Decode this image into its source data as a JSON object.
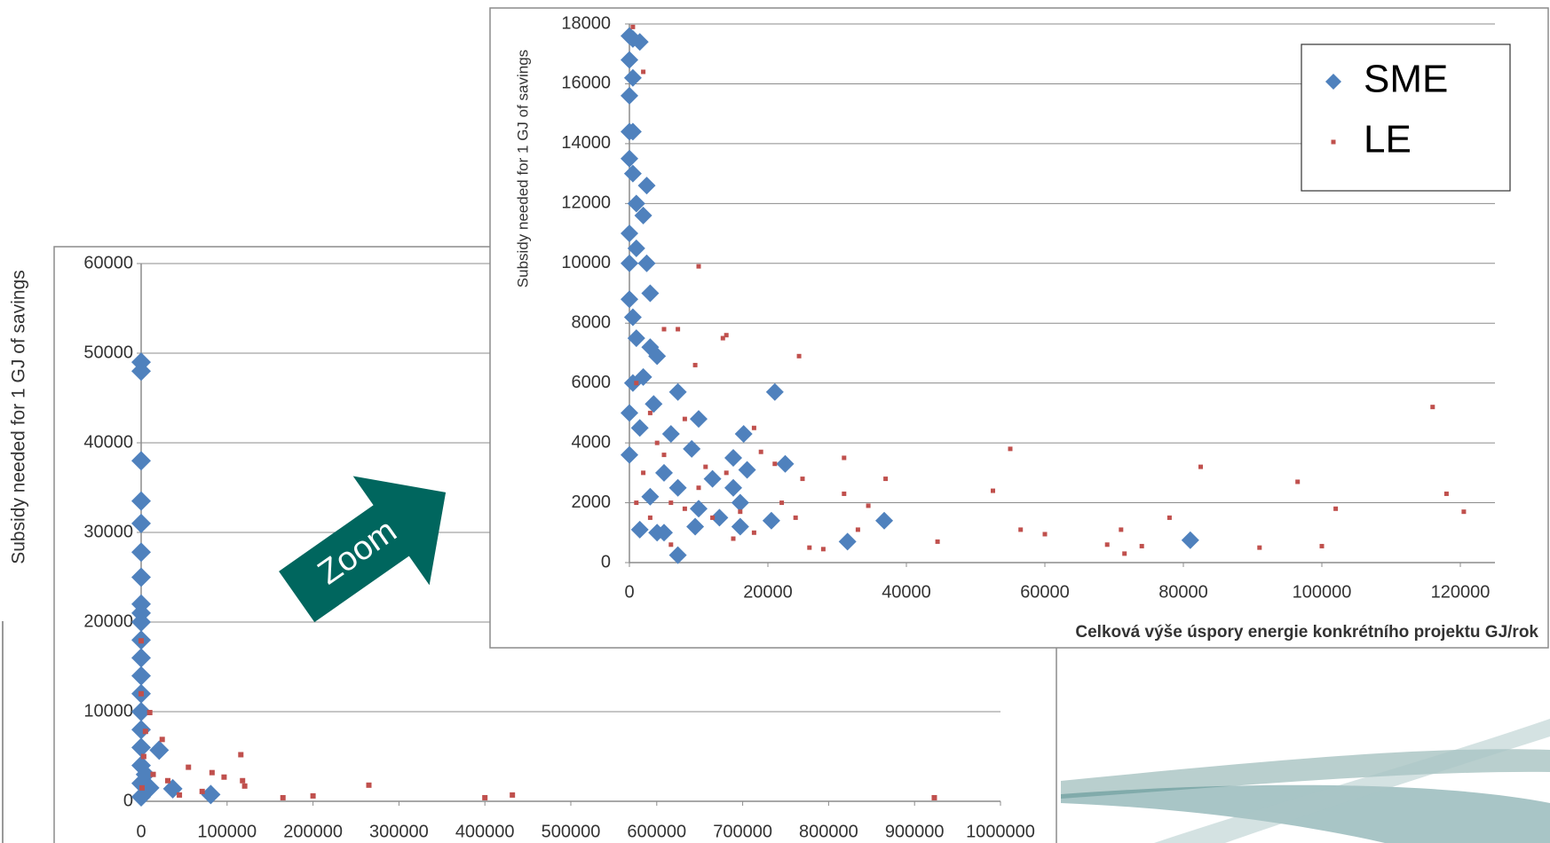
{
  "chart_data": [
    {
      "type": "scatter",
      "ylabel": "Subsidy needed for 1 GJ of savings",
      "xlim": [
        0,
        1000000
      ],
      "xticks": [
        0,
        100000,
        200000,
        300000,
        400000,
        500000,
        600000,
        700000,
        800000,
        900000,
        1000000
      ],
      "ylim": [
        0,
        60000
      ],
      "yticks": [
        0,
        10000,
        20000,
        30000,
        40000,
        50000,
        60000
      ],
      "grid": true,
      "annotation": "Zoom",
      "series": [
        {
          "color": "#4f81bd",
          "marker": "diamond",
          "x": [
            0,
            0,
            0,
            0,
            0,
            0,
            0,
            0,
            0,
            0,
            0,
            0,
            0,
            0,
            0,
            0,
            0,
            0,
            0,
            0,
            21000,
            36800,
            81000,
            5000,
            10000
          ],
          "values": [
            49000,
            48000,
            38000,
            33500,
            31000,
            27800,
            25000,
            22000,
            21000,
            20000,
            18000,
            16000,
            14000,
            12000,
            10000,
            8000,
            6000,
            4000,
            2000,
            500,
            5700,
            1400,
            750,
            3000,
            1500
          ]
        },
        {
          "color": "#c0504d",
          "marker": "square",
          "x": [
            0,
            0,
            10000,
            24500,
            5000,
            116000,
            55000,
            82500,
            118000,
            120500,
            96500,
            165000,
            200000,
            265000,
            400000,
            432000,
            923000,
            71000,
            44500,
            31000,
            14000,
            3000,
            1000
          ],
          "values": [
            17900,
            12000,
            9900,
            6900,
            7800,
            5200,
            3800,
            3200,
            2300,
            1700,
            2700,
            400,
            600,
            1800,
            400,
            700,
            400,
            1100,
            700,
            2300,
            3000,
            5000,
            1500
          ]
        }
      ]
    },
    {
      "type": "scatter",
      "ylabel": "Subsidy needed for 1 GJ of savings",
      "xlabel": "Celková výše úspory energie konkrétního projektu GJ/rok",
      "xlim": [
        0,
        125000
      ],
      "xticks": [
        0,
        20000,
        40000,
        60000,
        80000,
        100000,
        120000
      ],
      "ylim": [
        0,
        18000
      ],
      "yticks": [
        0,
        2000,
        4000,
        6000,
        8000,
        10000,
        12000,
        14000,
        16000,
        18000
      ],
      "grid": true,
      "legend": "upper right",
      "series": [
        {
          "name": "SME",
          "color": "#4f81bd",
          "marker": "diamond",
          "x": [
            0,
            500,
            1500,
            0,
            500,
            0,
            0,
            500,
            0,
            500,
            2500,
            1000,
            2000,
            0,
            1000,
            0,
            2500,
            3000,
            0,
            500,
            1000,
            3000,
            4000,
            2000,
            500,
            7000,
            21000,
            3500,
            0,
            10000,
            1500,
            6000,
            16500,
            9000,
            0,
            15000,
            22500,
            17000,
            5000,
            12000,
            15000,
            7000,
            3000,
            16000,
            10000,
            13000,
            20500,
            36800,
            9500,
            1500,
            5000,
            16000,
            31500,
            81000,
            7000,
            4000
          ],
          "values": [
            17600,
            17500,
            17400,
            16800,
            16200,
            15600,
            14400,
            14400,
            13500,
            13000,
            12600,
            12000,
            11600,
            11000,
            10500,
            10000,
            10000,
            9000,
            8800,
            8200,
            7500,
            7200,
            6900,
            6200,
            6000,
            5700,
            5700,
            5300,
            5000,
            4800,
            4500,
            4300,
            4300,
            3800,
            3600,
            3500,
            3300,
            3100,
            3000,
            2800,
            2500,
            2500,
            2200,
            2000,
            1800,
            1500,
            1400,
            1400,
            1200,
            1100,
            1000,
            1200,
            700,
            750,
            250,
            1000
          ]
        },
        {
          "name": "LE",
          "color": "#c0504d",
          "marker": "square",
          "x": [
            500,
            2000,
            10000,
            5000,
            7000,
            13500,
            14000,
            24500,
            9500,
            1000,
            3000,
            8000,
            18000,
            19000,
            21000,
            25000,
            31000,
            37000,
            55000,
            52500,
            82500,
            96500,
            116000,
            118000,
            120500,
            102000,
            31000,
            34500,
            33000,
            28000,
            26000,
            44500,
            56500,
            60000,
            69000,
            71000,
            71500,
            74000,
            78000,
            91000,
            100000,
            15000,
            12000,
            18000,
            6000,
            4000,
            2000,
            6000,
            10000,
            14000,
            22000,
            24000,
            3000,
            1000,
            8000,
            11000,
            16000,
            5000
          ],
          "values": [
            17900,
            16400,
            9900,
            7800,
            7800,
            7500,
            7600,
            6900,
            6600,
            6000,
            5000,
            4800,
            4500,
            3700,
            3300,
            2800,
            3500,
            2800,
            3800,
            2400,
            3200,
            2700,
            5200,
            2300,
            1700,
            1800,
            2300,
            1900,
            1100,
            450,
            500,
            700,
            1100,
            950,
            600,
            1100,
            300,
            550,
            1500,
            500,
            550,
            800,
            1500,
            1000,
            600,
            4000,
            3000,
            2000,
            2500,
            3000,
            2000,
            1500,
            1500,
            2000,
            1800,
            3200,
            1700,
            3600
          ]
        }
      ]
    }
  ]
}
